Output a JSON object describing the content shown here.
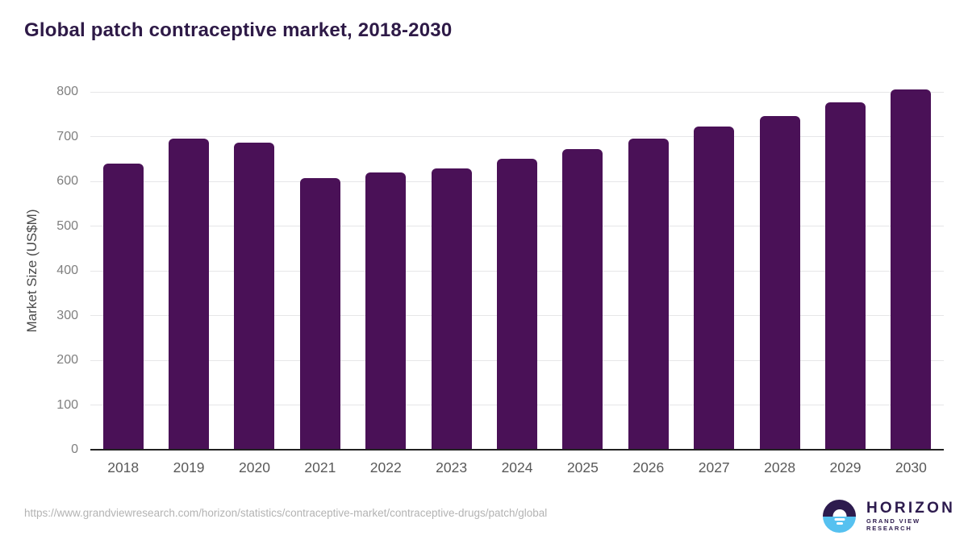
{
  "title": "Global patch contraceptive market, 2018-2030",
  "chart_data": {
    "type": "bar",
    "title": "Global patch contraceptive market, 2018-2030",
    "categories": [
      "2018",
      "2019",
      "2020",
      "2021",
      "2022",
      "2023",
      "2024",
      "2025",
      "2026",
      "2027",
      "2028",
      "2029",
      "2030"
    ],
    "values": [
      640,
      696,
      687,
      607,
      620,
      629,
      650,
      672,
      696,
      722,
      746,
      776,
      805
    ],
    "xlabel": "",
    "ylabel": "Market Size (US$M)",
    "ylim": [
      0,
      800
    ],
    "yticks": [
      0,
      100,
      200,
      300,
      400,
      500,
      600,
      700,
      800
    ],
    "grid": "horizontal",
    "legend": "none",
    "bar_color": "#4a1157"
  },
  "colors": {
    "title_text": "#2e1a47",
    "bar_fill": "#4a1157",
    "gridline": "#e6e6e8",
    "axis_line": "#222222",
    "tick_text": "#7f7f7f",
    "category_text": "#595959",
    "url_text": "#b3b3b3",
    "logo_navy": "#2d1b4e",
    "logo_blue": "#56c1f0"
  },
  "footer": {
    "source_url": "https://www.grandviewresearch.com/horizon/statistics/contraceptive-market/contraceptive-drugs/patch/global",
    "logo": {
      "name": "HORIZON",
      "subtitle": "GRAND VIEW RESEARCH"
    }
  }
}
